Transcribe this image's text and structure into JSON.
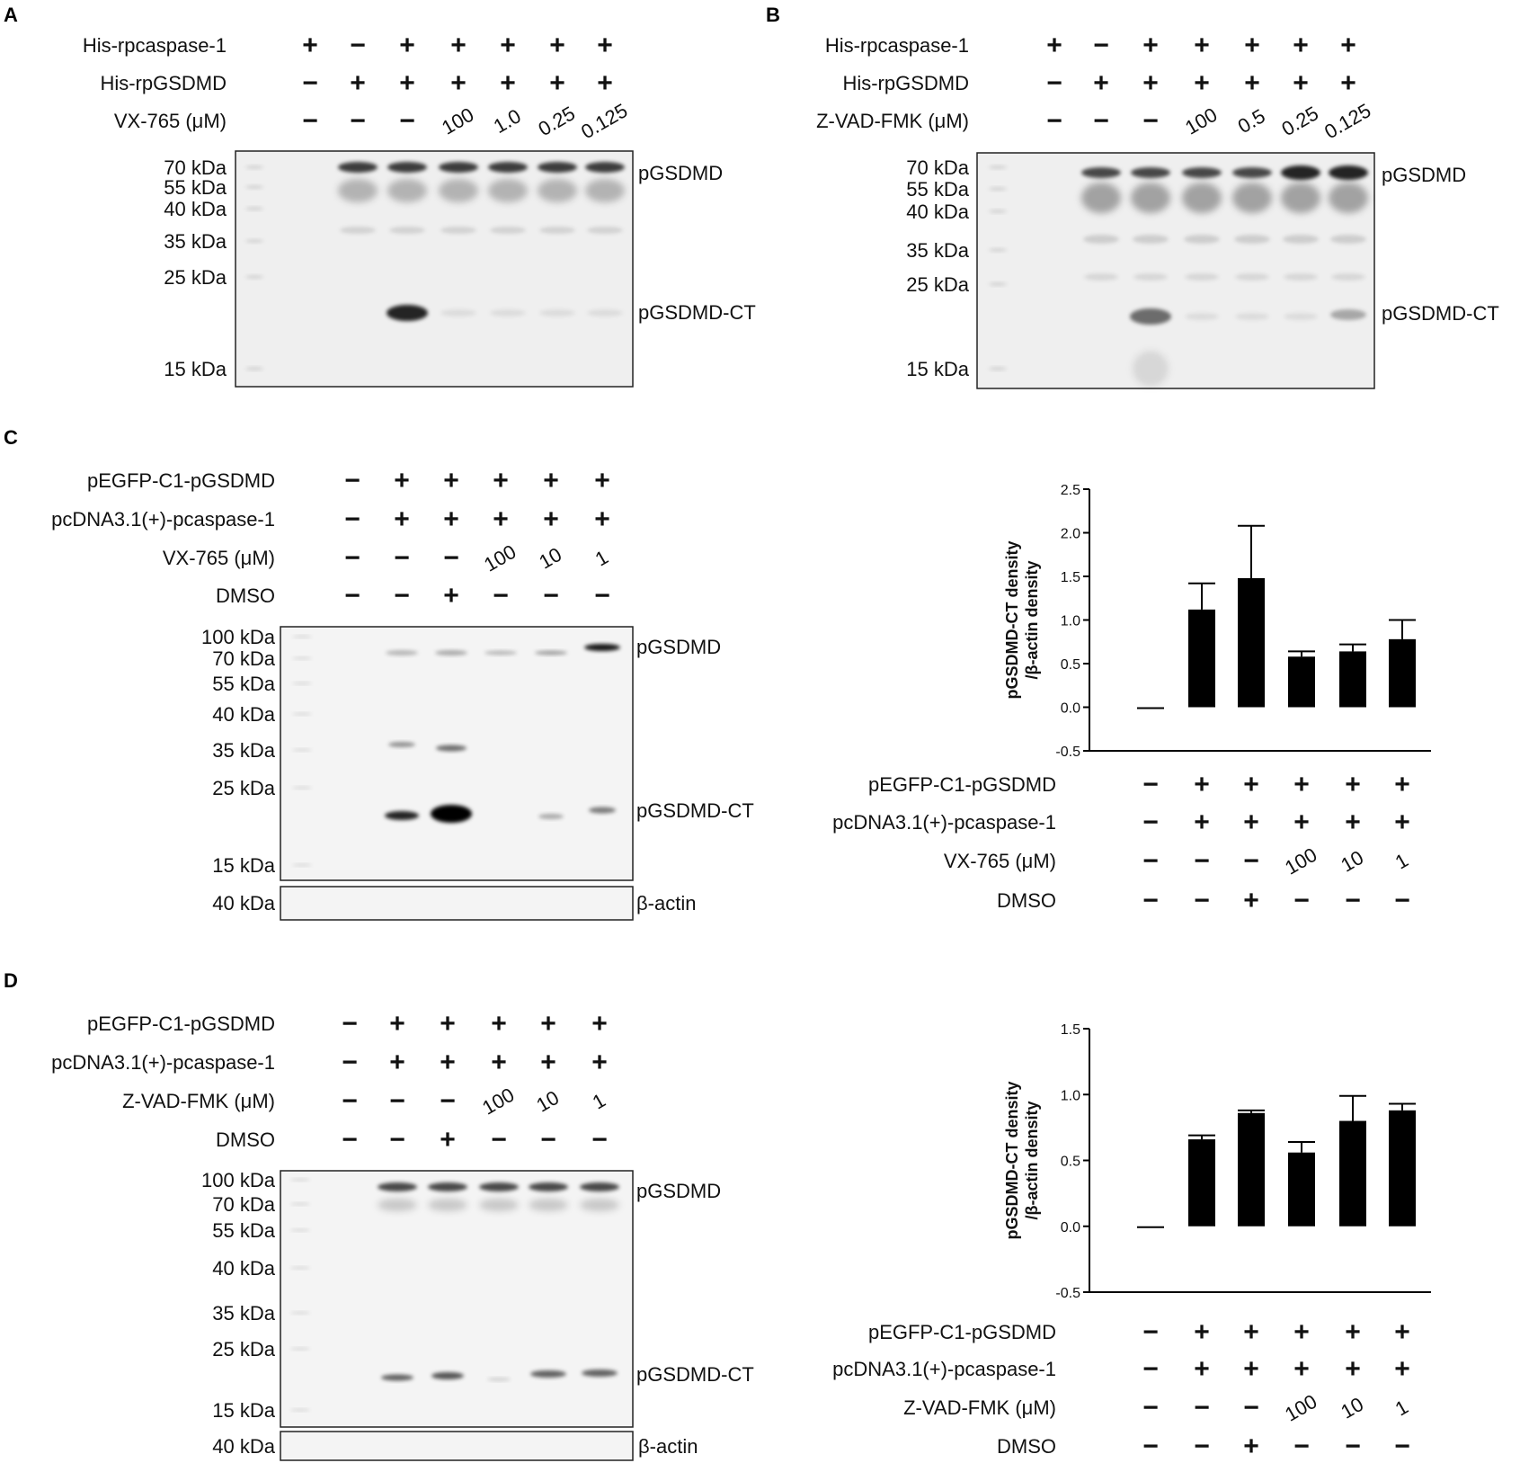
{
  "panels": {
    "A": {
      "letter": "A",
      "rows": [
        {
          "label": "His-rpcaspase-1",
          "values": [
            "+",
            "−",
            "+",
            "+",
            "+",
            "+",
            "+"
          ]
        },
        {
          "label": "His-rpGSDMD",
          "values": [
            "−",
            "+",
            "+",
            "+",
            "+",
            "+",
            "+"
          ]
        },
        {
          "label": "VX-765 (μM)",
          "values": [
            "−",
            "−",
            "−",
            "100",
            "1.0",
            "0.25",
            "0.125"
          ]
        }
      ],
      "markers": [
        "70 kDa",
        "55 kDa",
        "40 kDa",
        "35 kDa",
        "25 kDa",
        "15 kDa"
      ],
      "band_labels": [
        "pGSDMD",
        "pGSDMD-CT"
      ]
    },
    "B": {
      "letter": "B",
      "rows": [
        {
          "label": "His-rpcaspase-1",
          "values": [
            "+",
            "−",
            "+",
            "+",
            "+",
            "+",
            "+"
          ]
        },
        {
          "label": "His-rpGSDMD",
          "values": [
            "−",
            "+",
            "+",
            "+",
            "+",
            "+",
            "+"
          ]
        },
        {
          "label": "Z-VAD-FMK (μM)",
          "values": [
            "−",
            "−",
            "−",
            "100",
            "0.5",
            "0.25",
            "0.125"
          ]
        }
      ],
      "markers": [
        "70 kDa",
        "55 kDa",
        "40 kDa",
        "35 kDa",
        "25 kDa",
        "15 kDa"
      ],
      "band_labels": [
        "pGSDMD",
        "pGSDMD-CT"
      ]
    },
    "C": {
      "letter": "C",
      "rows": [
        {
          "label": "pEGFP-C1-pGSDMD",
          "values": [
            "−",
            "+",
            "+",
            "+",
            "+",
            "+"
          ]
        },
        {
          "label": "pcDNA3.1(+)-pcaspase-1",
          "values": [
            "−",
            "+",
            "+",
            "+",
            "+",
            "+"
          ]
        },
        {
          "label": "VX-765 (μM)",
          "values": [
            "−",
            "−",
            "−",
            "100",
            "10",
            "1"
          ]
        },
        {
          "label": "DMSO",
          "values": [
            "−",
            "−",
            "+",
            "−",
            "−",
            "−"
          ]
        }
      ],
      "markers": [
        "100 kDa",
        "70 kDa",
        "55 kDa",
        "40 kDa",
        "35 kDa",
        "25 kDa",
        "15 kDa"
      ],
      "actin_marker": "40 kDa",
      "band_labels": [
        "pGSDMD",
        "pGSDMD-CT"
      ],
      "actin_label": "β-actin"
    },
    "D": {
      "letter": "D",
      "rows": [
        {
          "label": "pEGFP-C1-pGSDMD",
          "values": [
            "−",
            "+",
            "+",
            "+",
            "+",
            "+"
          ]
        },
        {
          "label": "pcDNA3.1(+)-pcaspase-1",
          "values": [
            "−",
            "+",
            "+",
            "+",
            "+",
            "+"
          ]
        },
        {
          "label": "Z-VAD-FMK (μM)",
          "values": [
            "−",
            "−",
            "−",
            "100",
            "10",
            "1"
          ]
        },
        {
          "label": "DMSO",
          "values": [
            "−",
            "−",
            "+",
            "−",
            "−",
            "−"
          ]
        }
      ],
      "markers": [
        "100 kDa",
        "70 kDa",
        "55 kDa",
        "40 kDa",
        "35 kDa",
        "25 kDa",
        "15 kDa"
      ],
      "actin_marker": "40 kDa",
      "band_labels": [
        "pGSDMD",
        "pGSDMD-CT"
      ],
      "actin_label": "β-actin"
    }
  },
  "chart_data": [
    {
      "type": "bar",
      "panel": "C",
      "ylabel_line1": "pGSDMD-CT density",
      "ylabel_line2": "/β-actin density",
      "ylim": [
        -0.5,
        2.5
      ],
      "yticks": [
        "-0.5",
        "0.0",
        "0.5",
        "1.0",
        "1.5",
        "2.0",
        "2.5"
      ],
      "values": [
        0.0,
        1.12,
        1.48,
        0.58,
        0.64,
        0.78
      ],
      "errors": [
        0.0,
        0.3,
        0.6,
        0.06,
        0.08,
        0.22
      ],
      "rows": [
        {
          "label": "pEGFP-C1-pGSDMD",
          "values": [
            "−",
            "+",
            "+",
            "+",
            "+",
            "+"
          ]
        },
        {
          "label": "pcDNA3.1(+)-pcaspase-1",
          "values": [
            "−",
            "+",
            "+",
            "+",
            "+",
            "+"
          ]
        },
        {
          "label": "VX-765 (μM)",
          "values": [
            "−",
            "−",
            "−",
            "100",
            "10",
            "1"
          ]
        },
        {
          "label": "DMSO",
          "values": [
            "−",
            "−",
            "+",
            "−",
            "−",
            "−"
          ]
        }
      ],
      "bar_color": "#000000"
    },
    {
      "type": "bar",
      "panel": "D",
      "ylabel_line1": "pGSDMD-CT density",
      "ylabel_line2": "/β-actin density",
      "ylim": [
        -0.5,
        1.5
      ],
      "yticks": [
        "-0.5",
        "0.0",
        "0.5",
        "1.0",
        "1.5"
      ],
      "values": [
        0.0,
        0.66,
        0.86,
        0.56,
        0.8,
        0.88
      ],
      "errors": [
        0.0,
        0.03,
        0.02,
        0.08,
        0.19,
        0.05
      ],
      "rows": [
        {
          "label": "pEGFP-C1-pGSDMD",
          "values": [
            "−",
            "+",
            "+",
            "+",
            "+",
            "+"
          ]
        },
        {
          "label": "pcDNA3.1(+)-pcaspase-1",
          "values": [
            "−",
            "+",
            "+",
            "+",
            "+",
            "+"
          ]
        },
        {
          "label": "Z-VAD-FMK (μM)",
          "values": [
            "−",
            "−",
            "−",
            "100",
            "10",
            "1"
          ]
        },
        {
          "label": "DMSO",
          "values": [
            "−",
            "−",
            "+",
            "−",
            "−",
            "−"
          ]
        }
      ],
      "bar_color": "#000000"
    }
  ]
}
